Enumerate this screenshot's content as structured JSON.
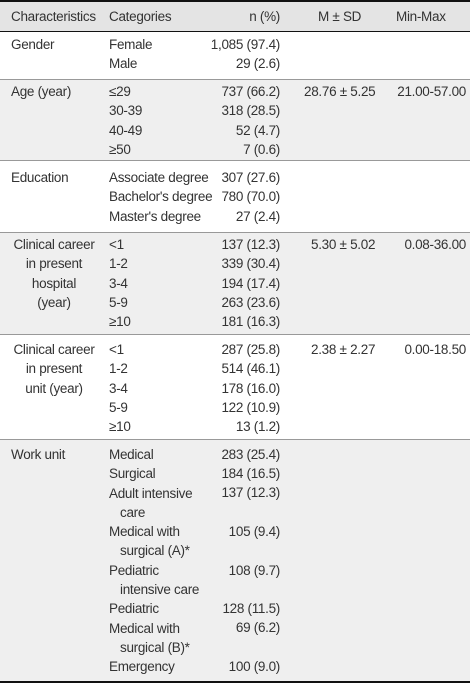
{
  "header": {
    "characteristics": "Characteristics",
    "categories": "Categories",
    "n_pct": "n (%)",
    "mean_sd": "M ± SD",
    "min_max": "Min-Max"
  },
  "rows": {
    "gender": {
      "label": "Gender",
      "cats": [
        "Female",
        "Male"
      ],
      "n": [
        "1,085 (97.4)",
        "29 (2.6)"
      ]
    },
    "age": {
      "label": "Age (year)",
      "cats": [
        "≤29",
        "30-39",
        "40-49",
        "≥50"
      ],
      "n": [
        "737 (66.2)",
        "318 (28.5)",
        "52 (4.7)",
        "7 (0.6)"
      ],
      "msd": "28.76 ± 5.25",
      "range": "21.00-57.00"
    },
    "education": {
      "label": "Education",
      "cats": [
        "Associate degree",
        "Bachelor's degree",
        "Master's degree"
      ],
      "n": [
        "307 (27.6)",
        "780 (70.0)",
        "27 (2.4)"
      ]
    },
    "career_hospital": {
      "label_lines": [
        "Clinical career",
        "in present",
        "hospital",
        "(year)"
      ],
      "cats": [
        "<1",
        "1-2",
        "3-4",
        "5-9",
        "≥10"
      ],
      "n": [
        "137 (12.3)",
        "339 (30.4)",
        "194 (17.4)",
        "263 (23.6)",
        "181 (16.3)"
      ],
      "msd": "5.30 ± 5.02",
      "range": "0.08-36.00"
    },
    "career_unit": {
      "label_lines": [
        "Clinical career",
        "in present",
        "unit (year)"
      ],
      "cats": [
        "<1",
        "1-2",
        "3-4",
        "5-9",
        "≥10"
      ],
      "n": [
        "287 (25.8)",
        "514 (46.1)",
        "178 (16.0)",
        "122 (10.9)",
        "13 (1.2)"
      ],
      "msd": "2.38 ± 2.27",
      "range": "0.00-18.50"
    },
    "work_unit": {
      "label": "Work unit",
      "cats": [
        "Medical",
        "Surgical",
        "Adult intensive",
        "care",
        "Medical with",
        "surgical (A)*",
        "Pediatric",
        "intensive care",
        "Pediatric",
        "Medical with",
        "surgical (B)*",
        "Emergency"
      ],
      "n": [
        "283 (25.4)",
        "184 (16.5)",
        "137 (12.3)",
        "105 (9.4)",
        "108 (9.7)",
        "128 (11.5)",
        "69 (6.2)",
        "100 (9.0)"
      ]
    }
  }
}
